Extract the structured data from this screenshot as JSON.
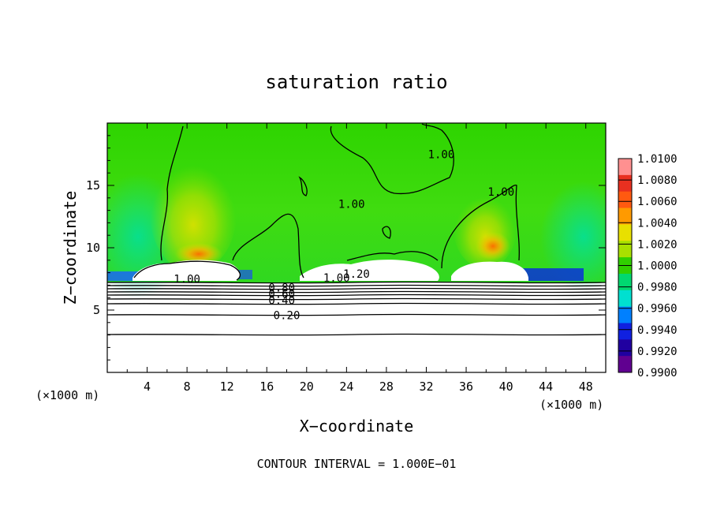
{
  "chart_data": {
    "type": "heatmap",
    "title": "saturation ratio",
    "xlabel": "X−coordinate",
    "ylabel": "Z−coordinate",
    "x_unit_left": "(×1000 m)",
    "x_unit_right": "(×1000 m)",
    "xlim": [
      0,
      50
    ],
    "ylim": [
      0,
      20
    ],
    "x_ticks": [
      4,
      8,
      12,
      16,
      20,
      24,
      28,
      32,
      36,
      40,
      44,
      48
    ],
    "y_ticks": [
      5,
      10,
      15
    ],
    "colorbar": {
      "min": 0.99,
      "max": 1.01,
      "labels": [
        "1.0100",
        "1.0080",
        "1.0060",
        "1.0040",
        "1.0020",
        "1.0000",
        "0.9980",
        "0.9960",
        "0.9940",
        "0.9920",
        "0.9900"
      ],
      "colors": [
        "#ff9090",
        "#e83020",
        "#ff5a10",
        "#ff9a00",
        "#e8e000",
        "#a8e000",
        "#30d000",
        "#00d870",
        "#00e0d0",
        "#0080ff",
        "#1020e0",
        "#2000a0",
        "#600090"
      ]
    },
    "contour_labels": [
      {
        "text": "1.00",
        "x": 8,
        "z": 7.5
      },
      {
        "text": "0.80",
        "x": 17.5,
        "z": 6.8
      },
      {
        "text": "0.60",
        "x": 17.5,
        "z": 6.3
      },
      {
        "text": "0.40",
        "x": 17.5,
        "z": 5.8
      },
      {
        "text": "0.20",
        "x": 18,
        "z": 4.6
      },
      {
        "text": "1.00",
        "x": 23,
        "z": 7.6
      },
      {
        "text": "1.20",
        "x": 25,
        "z": 7.9
      },
      {
        "text": "1.00",
        "x": 24.5,
        "z": 13.5
      },
      {
        "text": "1.00",
        "x": 33.5,
        "z": 17.5
      },
      {
        "text": "1.00",
        "x": 39.5,
        "z": 14.5
      }
    ],
    "footnote": "CONTOUR INTERVAL = 1.000E−01",
    "grid": false
  }
}
